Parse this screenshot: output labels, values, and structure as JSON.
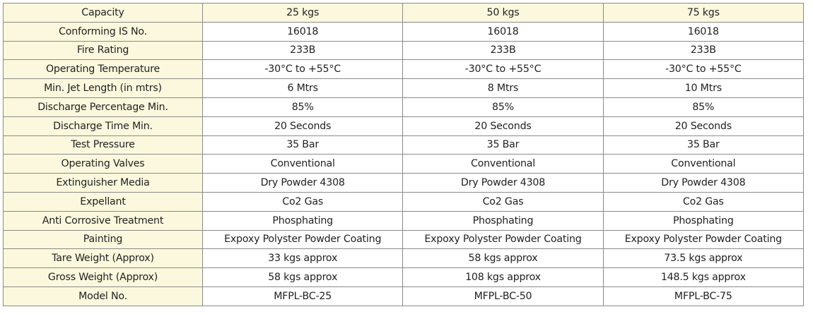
{
  "table": {
    "rows": [
      [
        "Capacity",
        "25 kgs",
        "50 kgs",
        "75 kgs"
      ],
      [
        "Conforming IS No.",
        "16018",
        "16018",
        "16018"
      ],
      [
        "Fire Rating",
        "233B",
        "233B",
        "233B"
      ],
      [
        "Operating Temperature",
        "-30°C to +55°C",
        "-30°C to +55°C",
        "-30°C to +55°C"
      ],
      [
        "Min. Jet Length (in mtrs)",
        "6 Mtrs",
        "8 Mtrs",
        "10 Mtrs"
      ],
      [
        "Discharge Percentage Min.",
        "85%",
        "85%",
        "85%"
      ],
      [
        "Discharge Time Min.",
        "20 Seconds",
        "20 Seconds",
        "20 Seconds"
      ],
      [
        "Test Pressure",
        "35 Bar",
        "35 Bar",
        "35 Bar"
      ],
      [
        "Operating Valves",
        "Conventional",
        "Conventional",
        "Conventional"
      ],
      [
        "Extinguisher Media",
        "Dry Powder 4308",
        "Dry Powder 4308",
        "Dry Powder 4308"
      ],
      [
        "Expellant",
        "Co2 Gas",
        "Co2 Gas",
        "Co2 Gas"
      ],
      [
        "Anti Corrosive Treatment",
        "Phosphating",
        "Phosphating",
        "Phosphating"
      ],
      [
        "Painting",
        "Expoxy Polyster Powder Coating",
        "Expoxy Polyster Powder Coating",
        "Expoxy Polyster Powder Coating"
      ],
      [
        "Tare Weight (Approx)",
        "33 kgs approx",
        "58 kgs approx",
        "73.5 kgs approx"
      ],
      [
        "Gross Weight (Approx)",
        "58 kgs approx",
        "108 kgs approx",
        "148.5 kgs approx"
      ],
      [
        "Model No.",
        "MFPL-BC-25",
        "MFPL-BC-50",
        "MFPL-BC-75"
      ]
    ]
  }
}
